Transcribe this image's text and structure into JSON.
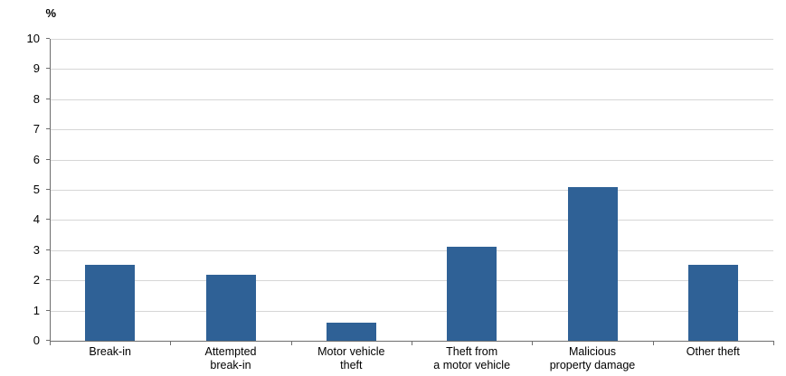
{
  "chart_data": {
    "type": "bar",
    "title": "",
    "xlabel": "",
    "ylabel": "%",
    "categories": [
      "Break-in",
      "Attempted break-in",
      "Motor vehicle theft",
      "Theft from a motor vehicle",
      "Malicious property damage",
      "Other theft"
    ],
    "category_label_lines": [
      [
        "Break-in"
      ],
      [
        "Attempted",
        "break-in"
      ],
      [
        "Motor vehicle",
        "theft"
      ],
      [
        "Theft from",
        "a motor vehicle"
      ],
      [
        "Malicious",
        "property damage"
      ],
      [
        "Other theft"
      ]
    ],
    "values": [
      2.5,
      2.2,
      0.6,
      3.1,
      5.1,
      2.5
    ],
    "ylim": [
      0,
      10
    ],
    "ytick_step": 1,
    "ytick_labels": [
      "0",
      "1",
      "2",
      "3",
      "4",
      "5",
      "6",
      "7",
      "8",
      "9",
      "10"
    ],
    "grid": true,
    "legend": "none",
    "colors": {
      "bar": "#2F6196",
      "gridline": "#D6D6D6",
      "axis": "#6E6E6E",
      "text": "#000000",
      "background": "#FFFFFF"
    }
  }
}
